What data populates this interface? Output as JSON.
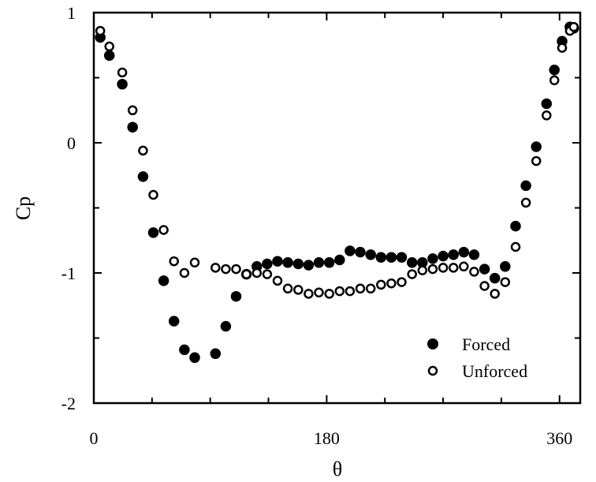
{
  "chart_data": {
    "type": "scatter",
    "title": "",
    "xlabel": "θ",
    "ylabel": "Cp",
    "xlim": [
      0,
      360
    ],
    "ylim": [
      -2,
      1
    ],
    "xticks": [
      0,
      180,
      360
    ],
    "yticks": [
      1,
      0,
      -1,
      -2
    ],
    "grid": false,
    "legend_position": "bottom-right",
    "series": [
      {
        "name": "Forced",
        "marker": "filled-circle",
        "color": "#000000",
        "points": [
          [
            5,
            0.81
          ],
          [
            12,
            0.67
          ],
          [
            22,
            0.45
          ],
          [
            30,
            0.12
          ],
          [
            38,
            -0.26
          ],
          [
            46,
            -0.69
          ],
          [
            54,
            -1.06
          ],
          [
            62,
            -1.37
          ],
          [
            70,
            -1.59
          ],
          [
            78,
            -1.65
          ],
          [
            94,
            -1.62
          ],
          [
            102,
            -1.41
          ],
          [
            110,
            -1.18
          ],
          [
            118,
            -1.01
          ],
          [
            126,
            -0.95
          ],
          [
            134,
            -0.93
          ],
          [
            142,
            -0.91
          ],
          [
            150,
            -0.92
          ],
          [
            158,
            -0.93
          ],
          [
            166,
            -0.94
          ],
          [
            174,
            -0.92
          ],
          [
            182,
            -0.92
          ],
          [
            190,
            -0.9
          ],
          [
            198,
            -0.83
          ],
          [
            206,
            -0.84
          ],
          [
            214,
            -0.86
          ],
          [
            222,
            -0.88
          ],
          [
            230,
            -0.88
          ],
          [
            238,
            -0.88
          ],
          [
            246,
            -0.92
          ],
          [
            254,
            -0.92
          ],
          [
            262,
            -0.89
          ],
          [
            270,
            -0.87
          ],
          [
            278,
            -0.86
          ],
          [
            286,
            -0.84
          ],
          [
            294,
            -0.86
          ],
          [
            302,
            -0.97
          ],
          [
            310,
            -1.04
          ],
          [
            318,
            -0.95
          ],
          [
            326,
            -0.64
          ],
          [
            334,
            -0.33
          ],
          [
            342,
            -0.03
          ],
          [
            350,
            0.3
          ],
          [
            356,
            0.56
          ],
          [
            362,
            0.78
          ],
          [
            368,
            0.89
          ],
          [
            371,
            0.88
          ]
        ]
      },
      {
        "name": "Unforced",
        "marker": "open-circle",
        "color": "#000000",
        "points": [
          [
            5,
            0.86
          ],
          [
            12,
            0.74
          ],
          [
            22,
            0.54
          ],
          [
            30,
            0.25
          ],
          [
            38,
            -0.06
          ],
          [
            46,
            -0.4
          ],
          [
            54,
            -0.67
          ],
          [
            62,
            -0.91
          ],
          [
            70,
            -1.0
          ],
          [
            78,
            -0.92
          ],
          [
            94,
            -0.96
          ],
          [
            102,
            -0.97
          ],
          [
            110,
            -0.97
          ],
          [
            118,
            -1.01
          ],
          [
            126,
            -1.0
          ],
          [
            134,
            -1.01
          ],
          [
            142,
            -1.06
          ],
          [
            150,
            -1.12
          ],
          [
            158,
            -1.13
          ],
          [
            166,
            -1.16
          ],
          [
            174,
            -1.15
          ],
          [
            182,
            -1.16
          ],
          [
            190,
            -1.14
          ],
          [
            198,
            -1.14
          ],
          [
            206,
            -1.12
          ],
          [
            214,
            -1.12
          ],
          [
            222,
            -1.09
          ],
          [
            230,
            -1.08
          ],
          [
            238,
            -1.07
          ],
          [
            246,
            -1.01
          ],
          [
            254,
            -0.98
          ],
          [
            262,
            -0.97
          ],
          [
            270,
            -0.96
          ],
          [
            278,
            -0.96
          ],
          [
            286,
            -0.95
          ],
          [
            294,
            -0.99
          ],
          [
            302,
            -1.1
          ],
          [
            310,
            -1.16
          ],
          [
            318,
            -1.07
          ],
          [
            326,
            -0.8
          ],
          [
            334,
            -0.46
          ],
          [
            342,
            -0.14
          ],
          [
            350,
            0.21
          ],
          [
            356,
            0.48
          ],
          [
            362,
            0.73
          ],
          [
            368,
            0.86
          ],
          [
            371,
            0.89
          ]
        ]
      }
    ]
  }
}
